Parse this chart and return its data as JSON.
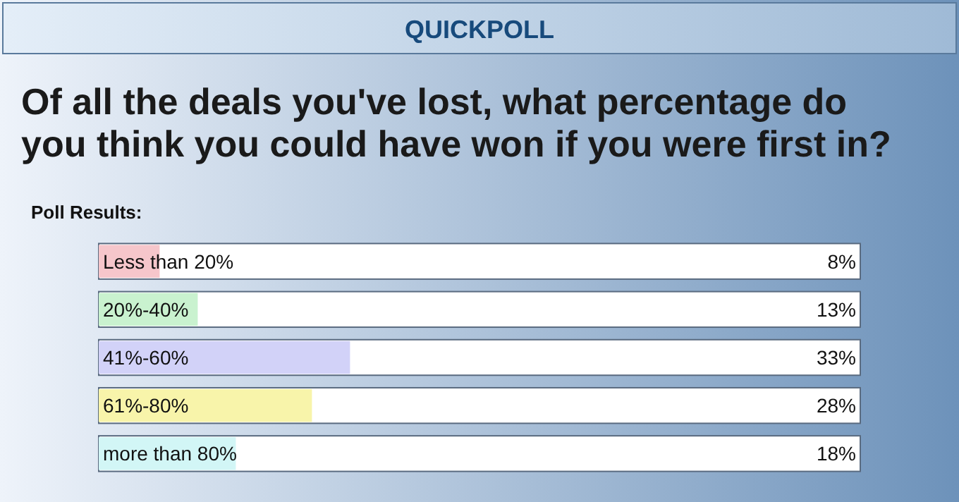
{
  "chart_data": {
    "type": "bar",
    "orientation": "horizontal",
    "title": "QUICKPOLL",
    "subtitle": "Of all the deals you've lost, what percentage do you think you could have won if you were first in?",
    "annotations": [
      "Poll Results:"
    ],
    "categories": [
      "Less than 20%",
      "20%-40%",
      "41%-60%",
      "61%-80%",
      "more than 80%"
    ],
    "values": [
      8,
      13,
      33,
      28,
      18
    ],
    "colors": [
      "#f6c6cb",
      "#c9f2cf",
      "#d2d2f8",
      "#f8f4aa",
      "#d2f6f6"
    ],
    "value_labels": [
      "8%",
      "13%",
      "33%",
      "28%",
      "18%"
    ],
    "xlim": [
      0,
      100
    ]
  }
}
